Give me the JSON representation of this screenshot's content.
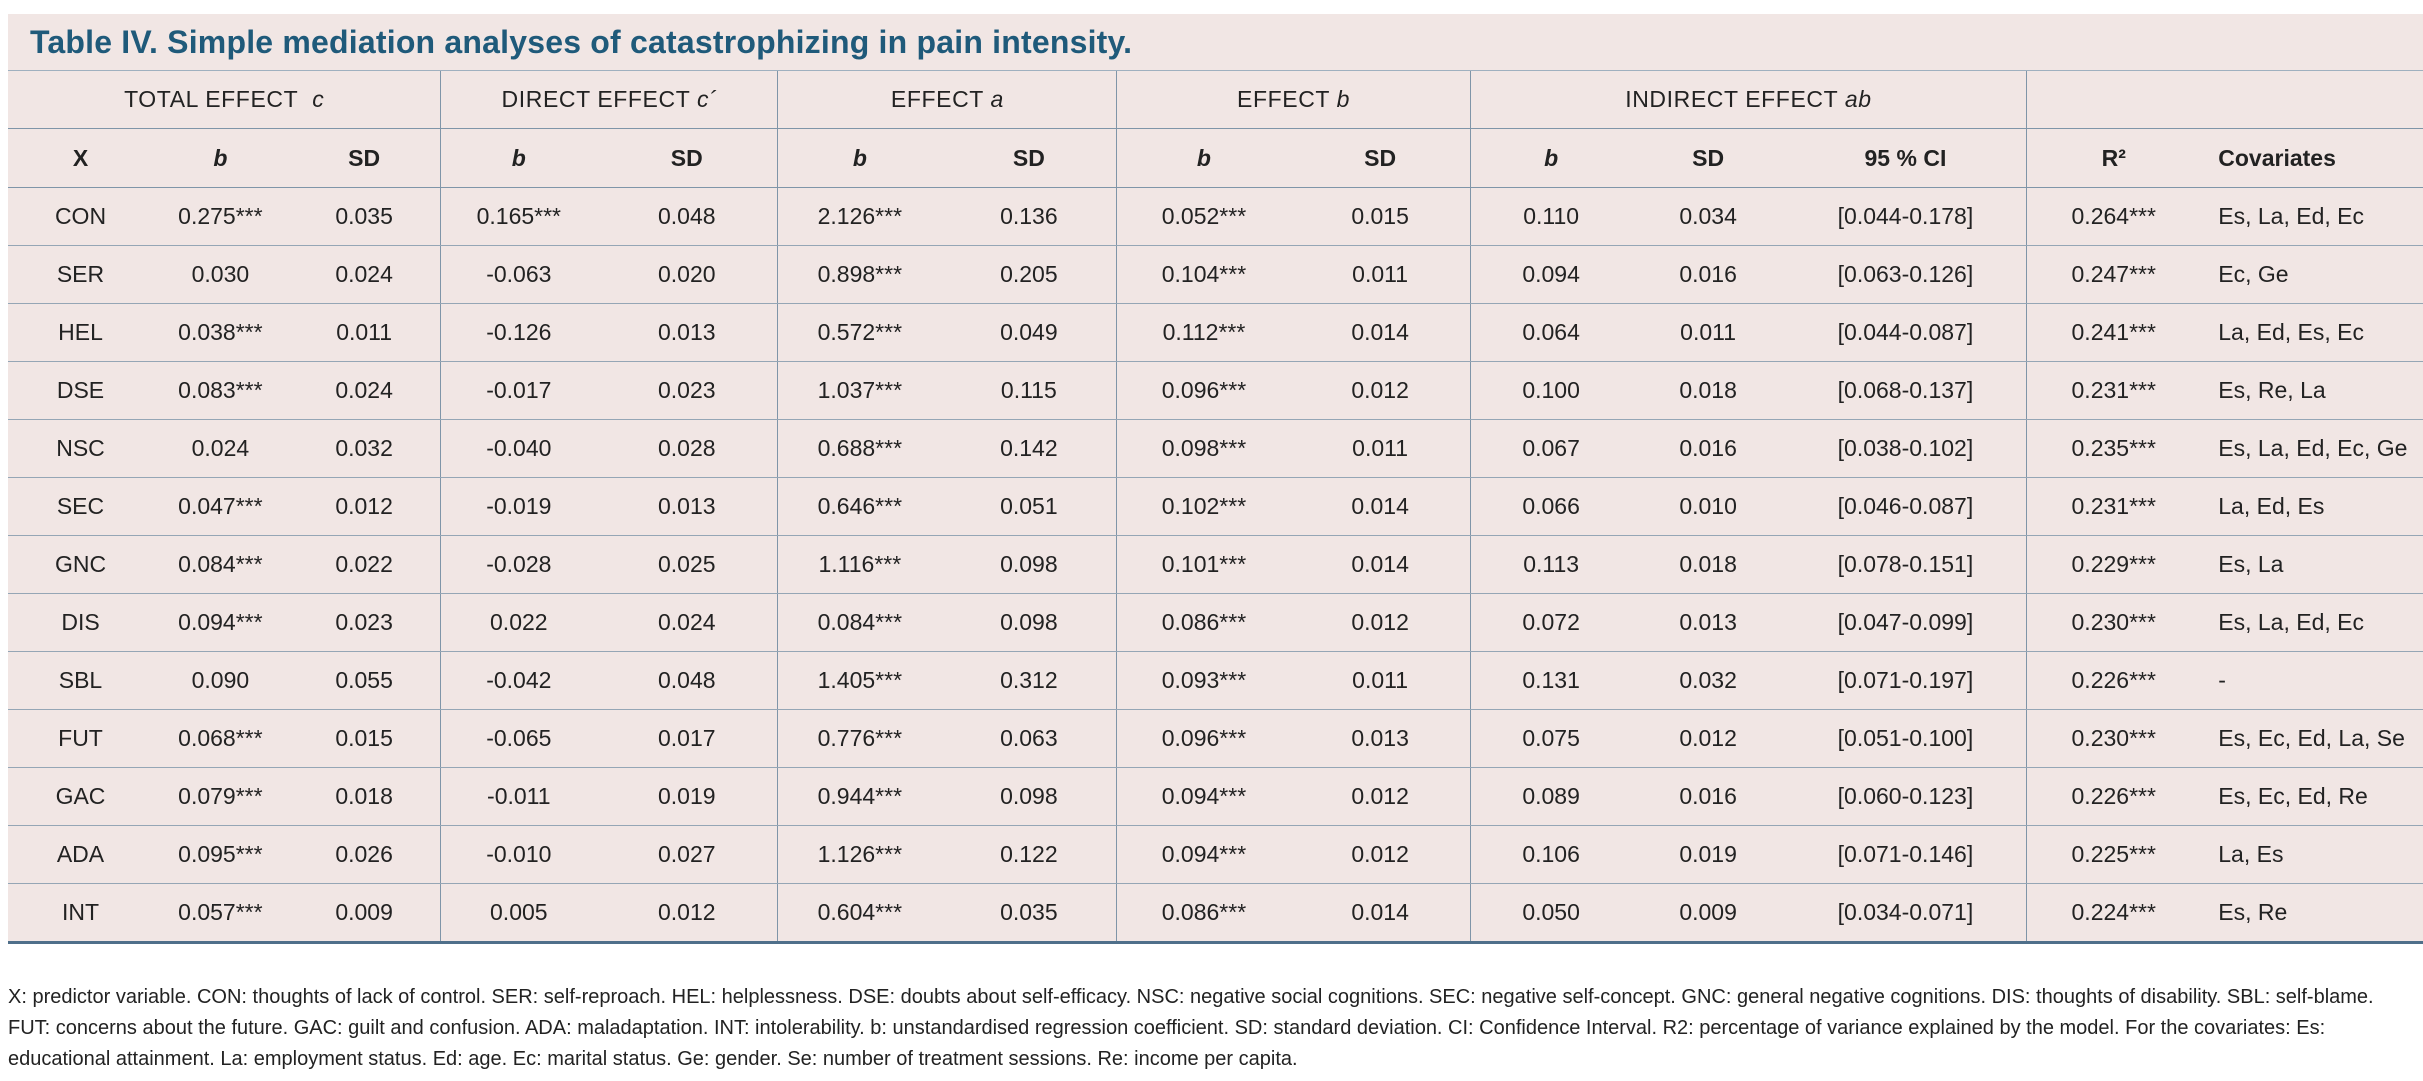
{
  "title": "Table IV. Simple mediation analyses of catastrophizing in pain intensity.",
  "groups": {
    "total": "TOTAL EFFECT",
    "total_sym": "c",
    "direct": "DIRECT EFFECT",
    "direct_sym": "c´",
    "a": "EFFECT",
    "a_sym": "a",
    "b": "EFFECT",
    "b_sym": "b",
    "indirect": "INDIRECT EFFECT",
    "indirect_sym": "ab"
  },
  "columns": {
    "x": "X",
    "b": "b",
    "sd": "SD",
    "ci": "95 % CI",
    "r2": "R²",
    "covariates": "Covariates"
  },
  "rows": [
    [
      "CON",
      "0.275***",
      "0.035",
      "0.165***",
      "0.048",
      "2.126***",
      "0.136",
      "0.052***",
      "0.015",
      "0.110",
      "0.034",
      "[0.044-0.178]",
      "0.264***",
      "Es, La, Ed, Ec"
    ],
    [
      "SER",
      "0.030",
      "0.024",
      "-0.063",
      "0.020",
      "0.898***",
      "0.205",
      "0.104***",
      "0.011",
      "0.094",
      "0.016",
      "[0.063-0.126]",
      "0.247***",
      "Ec, Ge"
    ],
    [
      "HEL",
      "0.038***",
      "0.011",
      "-0.126",
      "0.013",
      "0.572***",
      "0.049",
      "0.112***",
      "0.014",
      "0.064",
      "0.011",
      "[0.044-0.087]",
      "0.241***",
      "La, Ed, Es, Ec"
    ],
    [
      "DSE",
      "0.083***",
      "0.024",
      "-0.017",
      "0.023",
      "1.037***",
      "0.115",
      "0.096***",
      "0.012",
      "0.100",
      "0.018",
      "[0.068-0.137]",
      "0.231***",
      "Es, Re, La"
    ],
    [
      "NSC",
      "0.024",
      "0.032",
      "-0.040",
      "0.028",
      "0.688***",
      "0.142",
      "0.098***",
      "0.011",
      "0.067",
      "0.016",
      "[0.038-0.102]",
      "0.235***",
      "Es, La, Ed, Ec, Ge"
    ],
    [
      "SEC",
      "0.047***",
      "0.012",
      "-0.019",
      "0.013",
      "0.646***",
      "0.051",
      "0.102***",
      "0.014",
      "0.066",
      "0.010",
      "[0.046-0.087]",
      "0.231***",
      "La, Ed, Es"
    ],
    [
      "GNC",
      "0.084***",
      "0.022",
      "-0.028",
      "0.025",
      "1.116***",
      "0.098",
      "0.101***",
      "0.014",
      "0.113",
      "0.018",
      "[0.078-0.151]",
      "0.229***",
      "Es, La"
    ],
    [
      "DIS",
      "0.094***",
      "0.023",
      "0.022",
      "0.024",
      "0.084***",
      "0.098",
      "0.086***",
      "0.012",
      "0.072",
      "0.013",
      "[0.047-0.099]",
      "0.230***",
      "Es, La, Ed, Ec"
    ],
    [
      "SBL",
      "0.090",
      "0.055",
      "-0.042",
      "0.048",
      "1.405***",
      "0.312",
      "0.093***",
      "0.011",
      "0.131",
      "0.032",
      "[0.071-0.197]",
      "0.226***",
      "-"
    ],
    [
      "FUT",
      "0.068***",
      "0.015",
      "-0.065",
      "0.017",
      "0.776***",
      "0.063",
      "0.096***",
      "0.013",
      "0.075",
      "0.012",
      "[0.051-0.100]",
      "0.230***",
      "Es, Ec, Ed, La, Se"
    ],
    [
      "GAC",
      "0.079***",
      "0.018",
      "-0.011",
      "0.019",
      "0.944***",
      "0.098",
      "0.094***",
      "0.012",
      "0.089",
      "0.016",
      "[0.060-0.123]",
      "0.226***",
      "Es, Ec, Ed, Re"
    ],
    [
      "ADA",
      "0.095***",
      "0.026",
      "-0.010",
      "0.027",
      "1.126***",
      "0.122",
      "0.094***",
      "0.012",
      "0.106",
      "0.019",
      "[0.071-0.146]",
      "0.225***",
      "La, Es"
    ],
    [
      "INT",
      "0.057***",
      "0.009",
      "0.005",
      "0.012",
      "0.604***",
      "0.035",
      "0.086***",
      "0.014",
      "0.050",
      "0.009",
      "[0.034-0.071]",
      "0.224***",
      "Es, Re"
    ]
  ],
  "footnote": "X: predictor variable. CON: thoughts of lack of control. SER: self-reproach. HEL: helplessness. DSE: doubts about self-efficacy. NSC: negative social cognitions. SEC: negative self-concept. GNC: general negative cognitions. DIS: thoughts of disability. SBL: self-blame. FUT: concerns about the future. GAC: guilt and confusion. ADA: maladaptation. INT: intolerability. b: unstandardised regression coefficient. SD: standard deviation. CI: Confidence Interval. R2: percentage of variance explained by the model. For the covariates: Es: educational attainment. La: employment status. Ed: age. Ec: marital status. Ge: gender. Se: number of treatment sessions. Re: income per capita.",
  "colors": {
    "table_background": "#f1e6e4",
    "title_text": "#1f5a7a",
    "rule": "#4f6f8a"
  }
}
